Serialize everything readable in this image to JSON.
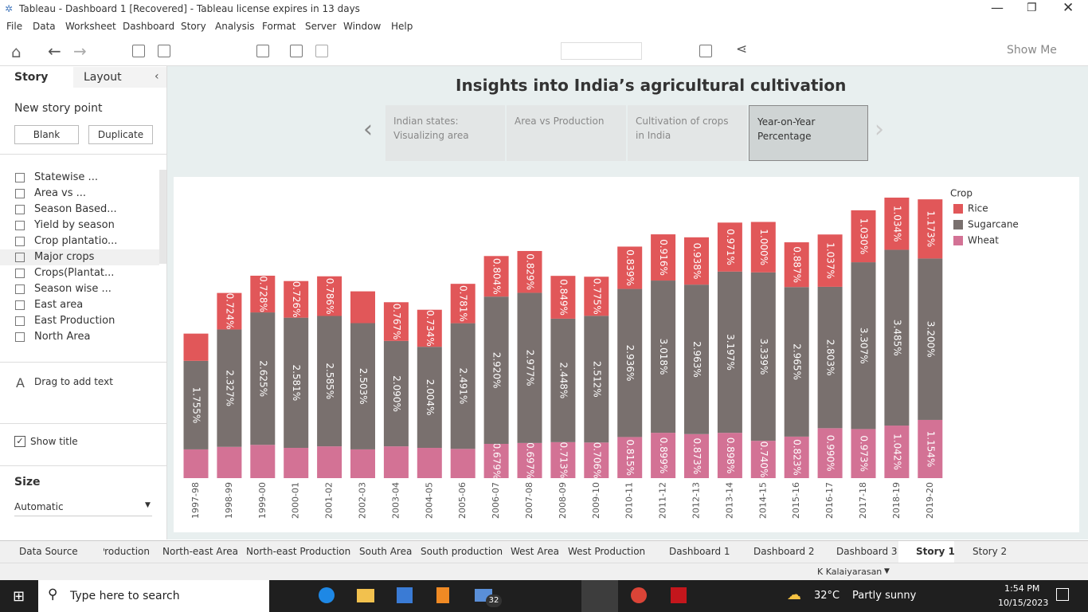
{
  "window": {
    "title": "Tableau - Dashboard 1 [Recovered] - Tableau license expires in 13 days",
    "menu": [
      "File",
      "Data",
      "Worksheet",
      "Dashboard",
      "Story",
      "Analysis",
      "Format",
      "Server",
      "Window",
      "Help"
    ],
    "show_me": "Show Me"
  },
  "sidebar": {
    "tabs": [
      "Story",
      "Layout"
    ],
    "new_story_point": "New story point",
    "buttons": [
      "Blank",
      "Duplicate"
    ],
    "sheets": [
      "Statewise ...",
      "Area vs ...",
      "Season Based...",
      "Yield by season",
      "Crop plantatio...",
      "Major crops",
      "Crops(Plantat...",
      "Season wise ...",
      "East area",
      "East Production",
      "North Area"
    ],
    "drag_text": "Drag to add text",
    "show_title": "Show title",
    "size_label": "Size",
    "size_value": "Automatic"
  },
  "story": {
    "title": "Insights into India’s agricultural cultivation",
    "points": [
      "Indian states: Visualizing area",
      "Area vs Production",
      "Cultivation of crops in India",
      "Year-on-Year Percentage"
    ]
  },
  "chart_data": {
    "type": "bar",
    "stacked": true,
    "legend_title": "Crop",
    "legend_position": "right",
    "categories": [
      "1997-98",
      "1998-99",
      "1999-00",
      "2000-01",
      "2001-02",
      "2002-03",
      "2003-04",
      "2004-05",
      "2005-06",
      "2006-07",
      "2007-08",
      "2008-09",
      "2009-10",
      "2010-11",
      "2011-12",
      "2012-13",
      "2013-14",
      "2014-15",
      "2015-16",
      "2016-17",
      "2017-18",
      "2018-19",
      "2019-20"
    ],
    "series": [
      {
        "name": "Rice",
        "color": "#e15759",
        "values": [
          0.54,
          0.724,
          0.728,
          0.726,
          0.786,
          0.63,
          0.767,
          0.734,
          0.781,
          0.804,
          0.829,
          0.849,
          0.775,
          0.839,
          0.916,
          0.938,
          0.971,
          1.0,
          0.887,
          1.037,
          1.03,
          1.034,
          1.173
        ],
        "value_labels": [
          null,
          "0.724%",
          "0.728%",
          "0.726%",
          "0.786%",
          null,
          "0.767%",
          "0.734%",
          "0.781%",
          "0.804%",
          "0.829%",
          "0.849%",
          "0.775%",
          "0.839%",
          "0.916%",
          "0.938%",
          "0.971%",
          "1.000%",
          "0.887%",
          "1.037%",
          "1.030%",
          "1.034%",
          "1.173%"
        ]
      },
      {
        "name": "Sugarcane",
        "color": "#79706e",
        "values": [
          1.755,
          2.327,
          2.625,
          2.581,
          2.585,
          2.503,
          2.09,
          2.004,
          2.491,
          2.92,
          2.977,
          2.448,
          2.512,
          2.936,
          3.018,
          2.963,
          3.197,
          3.339,
          2.965,
          2.803,
          3.307,
          3.485,
          3.2
        ],
        "value_labels": [
          "1.755%",
          "2.327%",
          "2.625%",
          "2.581%",
          "2.585%",
          "2.503%",
          "2.090%",
          "2.004%",
          "2.491%",
          "2.920%",
          "2.977%",
          "2.448%",
          "2.512%",
          "2.936%",
          "3.018%",
          "2.963%",
          "3.197%",
          "3.339%",
          "2.965%",
          "2.803%",
          "3.307%",
          "3.485%",
          "3.200%"
        ]
      },
      {
        "name": "Wheat",
        "color": "#d37295",
        "values": [
          0.57,
          0.62,
          0.66,
          0.6,
          0.63,
          0.57,
          0.63,
          0.6,
          0.58,
          0.679,
          0.697,
          0.713,
          0.706,
          0.815,
          0.899,
          0.873,
          0.898,
          0.74,
          0.823,
          0.99,
          0.973,
          1.042,
          1.154
        ],
        "value_labels": [
          null,
          null,
          null,
          null,
          null,
          null,
          null,
          null,
          null,
          "0.679%",
          "0.697%",
          "0.713%",
          "0.706%",
          "0.815%",
          "0.899%",
          "0.873%",
          "0.898%",
          "0.740%",
          "0.823%",
          "0.990%",
          "0.973%",
          "1.042%",
          "1.154%"
        ]
      }
    ]
  },
  "sheet_tabs": [
    "Data Source",
    "Production",
    "North-east Area",
    "North-east Production",
    "South Area",
    "South production",
    "West Area",
    "West Production",
    "Dashboard 1",
    "Dashboard 2",
    "Dashboard 3",
    "Story 1",
    "Story 2"
  ],
  "status": {
    "user": "K Kalaiyarasan"
  },
  "taskbar": {
    "search": "Type here to search",
    "mail_badge": "32",
    "temperature": "32°C",
    "weather": "Partly sunny",
    "time": "1:54 PM",
    "date": "10/15/2023"
  }
}
